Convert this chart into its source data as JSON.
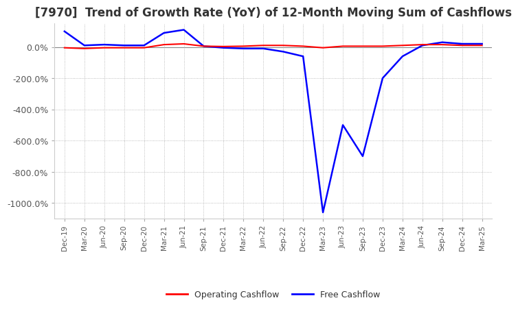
{
  "title": "[7970]  Trend of Growth Rate (YoY) of 12-Month Moving Sum of Cashflows",
  "title_fontsize": 12,
  "title_color": "#333333",
  "ylim": [
    -1100,
    150
  ],
  "yticks": [
    0,
    -200,
    -400,
    -600,
    -800,
    -1000
  ],
  "ytick_labels": [
    "0.0%",
    "-200.0%",
    "-400.0%",
    "-600.0%",
    "-800.0%",
    "-1000.0%"
  ],
  "background_color": "#ffffff",
  "grid_color": "#aaaaaa",
  "operating_color": "#ff0000",
  "free_color": "#0000ff",
  "legend_labels": [
    "Operating Cashflow",
    "Free Cashflow"
  ],
  "x_dates": [
    "Dec-19",
    "Mar-20",
    "Jun-20",
    "Sep-20",
    "Dec-20",
    "Mar-21",
    "Jun-21",
    "Sep-21",
    "Dec-21",
    "Mar-22",
    "Jun-22",
    "Sep-22",
    "Dec-22",
    "Mar-23",
    "Jun-23",
    "Sep-23",
    "Dec-23",
    "Mar-24",
    "Jun-24",
    "Sep-24",
    "Dec-24",
    "Mar-25"
  ],
  "operating_cashflow": [
    -5,
    -10,
    -5,
    -5,
    -5,
    15,
    20,
    5,
    3,
    5,
    10,
    10,
    5,
    -5,
    5,
    5,
    5,
    10,
    15,
    15,
    10,
    10
  ],
  "free_cashflow": [
    100,
    10,
    15,
    10,
    10,
    90,
    110,
    5,
    -5,
    -10,
    -10,
    -30,
    -60,
    -1060,
    -500,
    -700,
    -200,
    -60,
    10,
    30,
    20,
    20
  ]
}
